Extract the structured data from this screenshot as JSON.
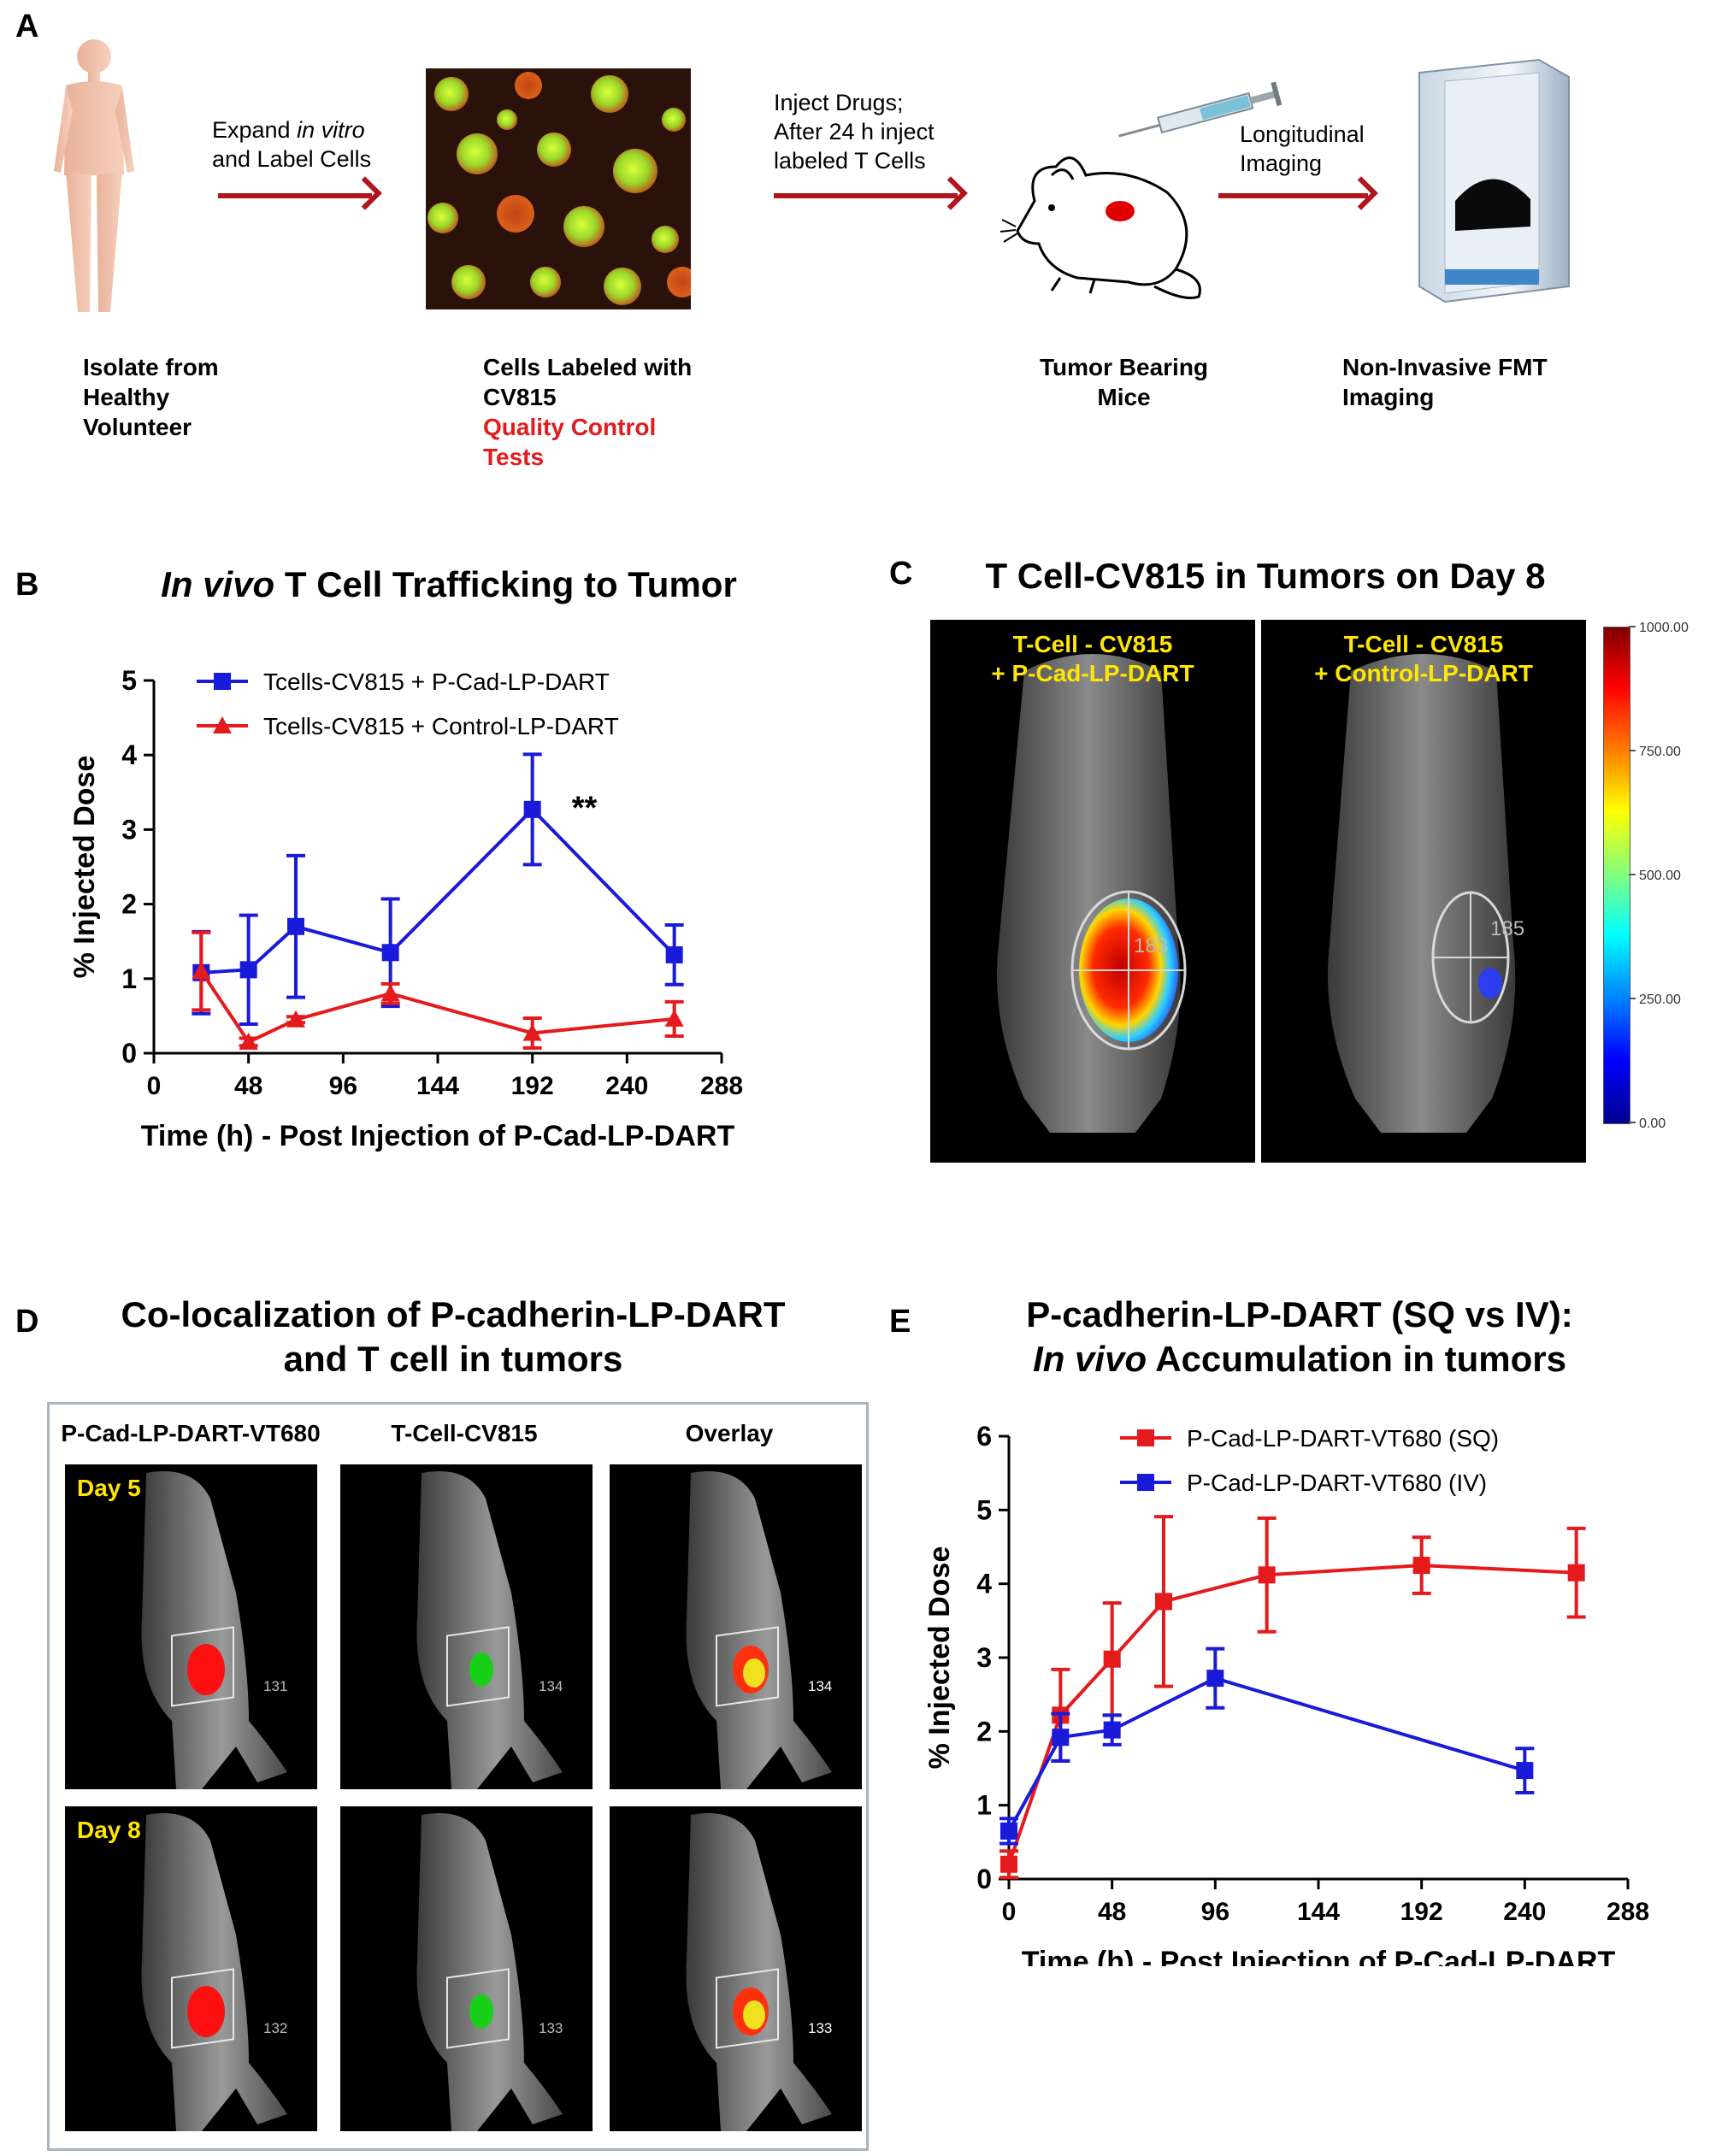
{
  "panel_a": {
    "label": "A",
    "steps": {
      "expand_line1": "Expand ",
      "expand_italic": "in vitro",
      "expand_line2": "and Label Cells",
      "inject_line1": "Inject Drugs;",
      "inject_line2": "After 24 h inject",
      "inject_line3": "labeled T Cells",
      "imaging_line1": "Longitudinal",
      "imaging_line2": "Imaging"
    },
    "captions": {
      "isolate": [
        "Isolate from",
        "Healthy",
        "Volunteer"
      ],
      "labeled": [
        "Cells Labeled with",
        "CV815"
      ],
      "qc": [
        "Quality Control",
        "Tests"
      ],
      "mice": [
        "Tumor Bearing",
        "Mice"
      ],
      "fmt": [
        "Non-Invasive FMT",
        "Imaging"
      ]
    }
  },
  "panel_b": {
    "label": "B",
    "title_italic": "In vivo",
    "title_rest": " T Cell Trafficking to Tumor",
    "significance": "**"
  },
  "panel_c": {
    "label": "C",
    "title": "T Cell-CV815 in Tumors on Day 8",
    "left_label": [
      "T-Cell - CV815",
      "+ P-Cad-LP-DART"
    ],
    "right_label": [
      "T-Cell - CV815",
      "+ Control-LP-DART"
    ],
    "left_roi": "183",
    "right_roi": "185",
    "colorbar_ticks": [
      "1000.00",
      "750.00",
      "500.00",
      "250.00",
      "0.00"
    ],
    "colorbar_values": [
      1000,
      750,
      500,
      250,
      0
    ]
  },
  "panel_d": {
    "label": "D",
    "title_line1": "Co-localization of P-cadherin-LP-DART",
    "title_line2": "and T cell in tumors",
    "columns": [
      "P-Cad-LP-DART-VT680",
      "T-Cell-CV815",
      "Overlay"
    ],
    "rows": [
      {
        "day": "Day 5",
        "roi": [
          "131",
          "134",
          "134"
        ]
      },
      {
        "day": "Day 8",
        "roi": [
          "132",
          "133",
          "133"
        ]
      }
    ]
  },
  "panel_e": {
    "label": "E",
    "title_line1": "P-cadherin-LP-DART (SQ vs IV):",
    "title_line2_italic": "In vivo",
    "title_line2_rest": " Accumulation in tumors"
  },
  "chart_data": [
    {
      "id": "B",
      "type": "line",
      "xlabel": "Time (h) - Post Injection of P-Cad-LP-DART",
      "ylabel": "% Injected Dose",
      "xlim": [
        0,
        288
      ],
      "ylim": [
        0,
        5
      ],
      "xticks": [
        0,
        48,
        96,
        144,
        192,
        240,
        288
      ],
      "yticks": [
        0,
        1,
        2,
        3,
        4,
        5
      ],
      "legend_position": "top-left",
      "grid": false,
      "series": [
        {
          "name": "Tcells-CV815 + P-Cad-LP-DART",
          "color": "#1a1adb",
          "marker": "square",
          "x": [
            24,
            48,
            72,
            120,
            192,
            264
          ],
          "y": [
            1.08,
            1.12,
            1.7,
            1.35,
            3.27,
            1.32
          ],
          "err": [
            0.55,
            0.73,
            0.95,
            0.72,
            0.74,
            0.4
          ]
        },
        {
          "name": "Tcells-CV815 + Control-LP-DART",
          "color": "#e41a1c",
          "marker": "triangle",
          "x": [
            24,
            48,
            72,
            120,
            192,
            264
          ],
          "y": [
            1.1,
            0.15,
            0.45,
            0.8,
            0.27,
            0.46
          ],
          "err": [
            0.52,
            0.05,
            0.04,
            0.13,
            0.2,
            0.23
          ]
        }
      ]
    },
    {
      "id": "E",
      "type": "line",
      "xlabel": "Time (h) - Post Injection of P-Cad-LP-DART",
      "ylabel": "% Injected Dose",
      "xlim": [
        0,
        288
      ],
      "ylim": [
        0,
        6
      ],
      "xticks": [
        0,
        48,
        96,
        144,
        192,
        240,
        288
      ],
      "yticks": [
        0,
        1,
        2,
        3,
        4,
        5,
        6
      ],
      "legend_position": "top-center",
      "grid": false,
      "series": [
        {
          "name": "P-Cad-LP-DART-VT680 (SQ)",
          "color": "#e41a1c",
          "marker": "square",
          "x": [
            0,
            24,
            48,
            72,
            120,
            192,
            264
          ],
          "y": [
            0.2,
            2.22,
            2.98,
            3.76,
            4.12,
            4.25,
            4.15
          ],
          "err": [
            0.18,
            0.62,
            0.76,
            1.15,
            0.77,
            0.38,
            0.6
          ]
        },
        {
          "name": "P-Cad-LP-DART-VT680 (IV)",
          "color": "#1a1adb",
          "marker": "square",
          "x": [
            0,
            24,
            48,
            96,
            240
          ],
          "y": [
            0.65,
            1.92,
            2.02,
            2.72,
            1.47
          ],
          "err": [
            0.17,
            0.32,
            0.2,
            0.4,
            0.3
          ]
        }
      ]
    }
  ]
}
